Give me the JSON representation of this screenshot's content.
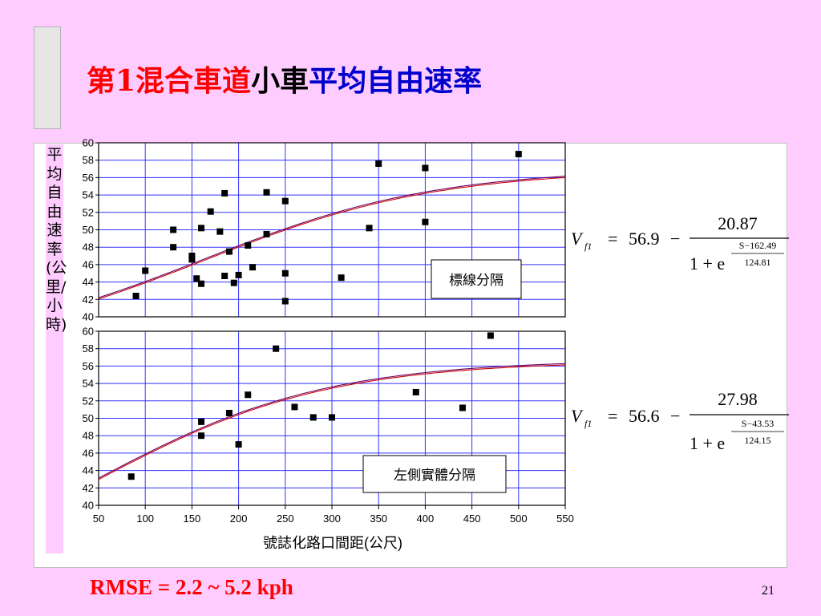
{
  "slide": {
    "title_parts": [
      {
        "text": "第1混合車道",
        "color": "#ff0000"
      },
      {
        "text": "小車",
        "color": "#000000"
      },
      {
        "text": "平均自由速率",
        "color": "#0000cc"
      }
    ],
    "y_axis_label": "平均自由速率(公里/小時)",
    "x_axis_label": "號誌化路口間距(公尺)",
    "footer": "RMSE = 2.2 ~ 5.2 kph",
    "page_number": "21"
  },
  "chart_data": [
    {
      "type": "scatter",
      "label": "標線分隔",
      "ylim": [
        40,
        60
      ],
      "xlim": [
        50,
        550
      ],
      "y_ticks": [
        40,
        42,
        44,
        46,
        48,
        50,
        52,
        54,
        56,
        58,
        60
      ],
      "x_ticks": [
        50,
        100,
        150,
        200,
        250,
        300,
        350,
        400,
        450,
        500,
        550
      ],
      "points": [
        [
          90,
          42.4
        ],
        [
          100,
          45.3
        ],
        [
          130,
          50.0
        ],
        [
          130,
          48.0
        ],
        [
          150,
          47.0
        ],
        [
          150,
          46.6
        ],
        [
          155,
          44.4
        ],
        [
          160,
          43.8
        ],
        [
          160,
          50.2
        ],
        [
          170,
          52.1
        ],
        [
          180,
          49.8
        ],
        [
          185,
          54.2
        ],
        [
          185,
          44.7
        ],
        [
          190,
          47.5
        ],
        [
          195,
          43.9
        ],
        [
          200,
          44.8
        ],
        [
          210,
          48.2
        ],
        [
          215,
          45.7
        ],
        [
          230,
          54.3
        ],
        [
          230,
          49.5
        ],
        [
          250,
          53.3
        ],
        [
          250,
          45.0
        ],
        [
          250,
          41.8
        ],
        [
          310,
          44.5
        ],
        [
          340,
          50.2
        ],
        [
          350,
          57.6
        ],
        [
          400,
          57.1
        ],
        [
          400,
          50.9
        ],
        [
          500,
          58.7
        ]
      ],
      "equation": {
        "lhs": "V",
        "lhs_sub": "f1",
        "constant": "56.9",
        "minus": "−",
        "numerator": "20.87",
        "denominator_base": "1 + e",
        "exp_top": "S−162.49",
        "exp_bottom": "124.81"
      },
      "model": {
        "a": 56.9,
        "b": 20.87,
        "c": 162.49,
        "d": 124.81
      }
    },
    {
      "type": "scatter",
      "label": "左側實體分隔",
      "ylim": [
        40,
        60
      ],
      "xlim": [
        50,
        550
      ],
      "y_ticks": [
        40,
        42,
        44,
        46,
        48,
        50,
        52,
        54,
        56,
        58,
        60
      ],
      "x_ticks": [
        50,
        100,
        150,
        200,
        250,
        300,
        350,
        400,
        450,
        500,
        550
      ],
      "points": [
        [
          85,
          43.3
        ],
        [
          160,
          49.6
        ],
        [
          160,
          48.0
        ],
        [
          190,
          50.6
        ],
        [
          200,
          47.0
        ],
        [
          210,
          52.7
        ],
        [
          240,
          58.0
        ],
        [
          260,
          51.3
        ],
        [
          280,
          50.1
        ],
        [
          300,
          50.1
        ],
        [
          390,
          53.0
        ],
        [
          440,
          51.2
        ],
        [
          470,
          59.5
        ]
      ],
      "equation": {
        "lhs": "V",
        "lhs_sub": "f1",
        "constant": "56.6",
        "minus": "−",
        "numerator": "27.98",
        "denominator_base": "1 + e",
        "exp_top": "S−43.53",
        "exp_bottom": "124.15"
      },
      "model": {
        "a": 56.6,
        "b": 27.98,
        "c": 43.53,
        "d": 124.15
      }
    }
  ]
}
